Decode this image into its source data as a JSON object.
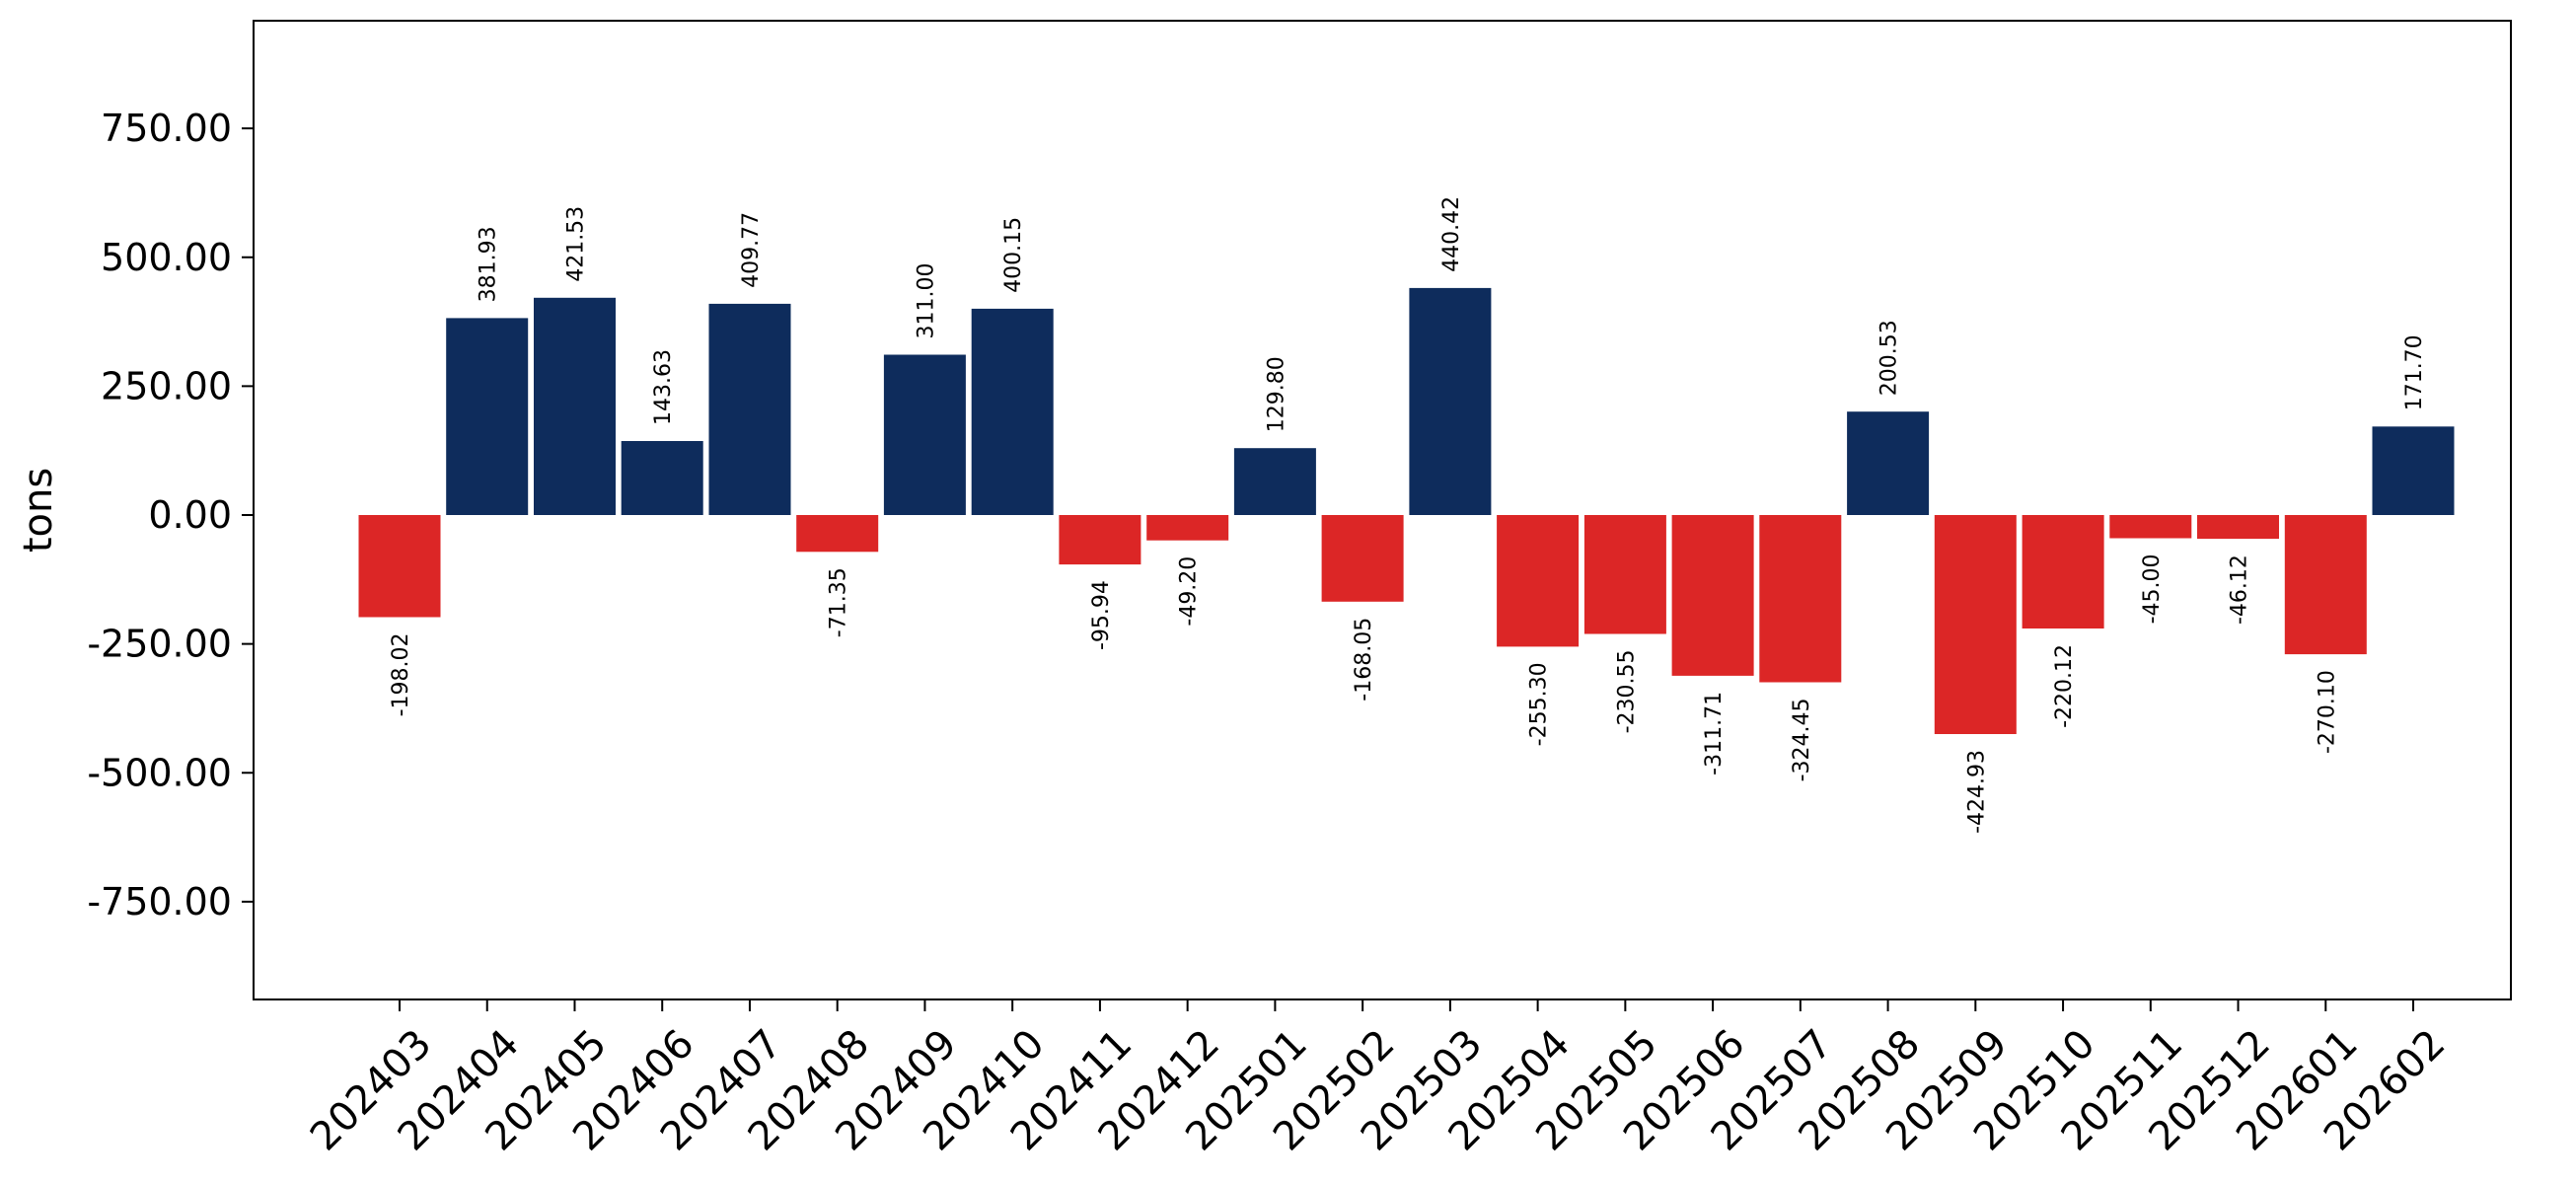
{
  "chart_data": {
    "type": "bar",
    "ylabel": "tons",
    "xlabel": "",
    "ylim": [
      -940,
      940
    ],
    "yticks": [
      -750,
      -500,
      -250,
      0,
      250,
      500,
      750
    ],
    "ytick_labels": [
      "-750.00",
      "-500.00",
      "-250.00",
      "0.00",
      "250.00",
      "500.00",
      "750.00"
    ],
    "grid": false,
    "legend": "none",
    "positive_color": "#0e2c5c",
    "negative_color": "#dc2626",
    "categories": [
      "202403",
      "202404",
      "202405",
      "202406",
      "202407",
      "202408",
      "202409",
      "202410",
      "202411",
      "202412",
      "202501",
      "202502",
      "202503",
      "202504",
      "202505",
      "202506",
      "202507",
      "202508",
      "202509",
      "202510",
      "202511",
      "202512",
      "202601",
      "202602"
    ],
    "values": [
      -198.02,
      381.93,
      421.53,
      143.63,
      409.77,
      -71.35,
      311.0,
      400.15,
      -95.94,
      -49.2,
      129.8,
      -168.05,
      440.42,
      -255.3,
      -230.55,
      -311.71,
      -324.45,
      200.53,
      -424.93,
      -220.12,
      -45.0,
      -46.12,
      -270.1,
      171.7
    ],
    "value_labels": [
      "-198.02",
      "381.93",
      "421.53",
      "143.63",
      "409.77",
      "-71.35",
      "311.00",
      "400.15",
      "-95.94",
      "-49.20",
      "129.80",
      "-168.05",
      "440.42",
      "-255.30",
      "-230.55",
      "-311.71",
      "-324.45",
      "200.53",
      "-424.93",
      "-220.12",
      "-45.00",
      "-46.12",
      "-270.10",
      "171.70"
    ]
  }
}
